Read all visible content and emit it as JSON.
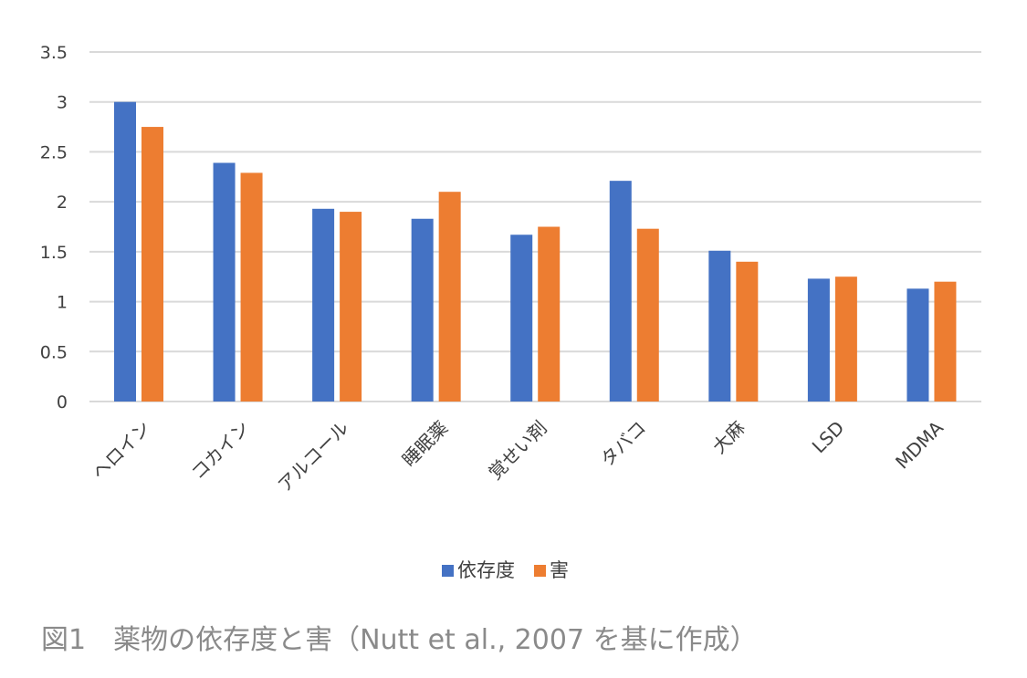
{
  "caption": "図1　薬物の依存度と害（Nutt et al., 2007 を基に作成）",
  "colors": {
    "series_1": "#4472C4",
    "series_2": "#ED7D31",
    "grid": "#d9d9d9",
    "text": "#404040"
  },
  "chart_data": {
    "type": "bar",
    "categories": [
      "ヘロイン",
      "コカイン",
      "アルコール",
      "睡眠薬",
      "覚せい剤",
      "タバコ",
      "大麻",
      "LSD",
      "MDMA"
    ],
    "series": [
      {
        "name": "依存度",
        "values": [
          3.0,
          2.39,
          1.93,
          1.83,
          1.67,
          2.21,
          1.51,
          1.23,
          1.13
        ]
      },
      {
        "name": "害",
        "values": [
          2.75,
          2.29,
          1.9,
          2.1,
          1.75,
          1.73,
          1.4,
          1.25,
          1.2
        ]
      }
    ],
    "y_ticks": [
      "0",
      "0.5",
      "1",
      "1.5",
      "2",
      "2.5",
      "3",
      "3.5"
    ],
    "ylim": [
      0,
      3.5
    ],
    "grid": true,
    "legend_position": "bottom"
  }
}
